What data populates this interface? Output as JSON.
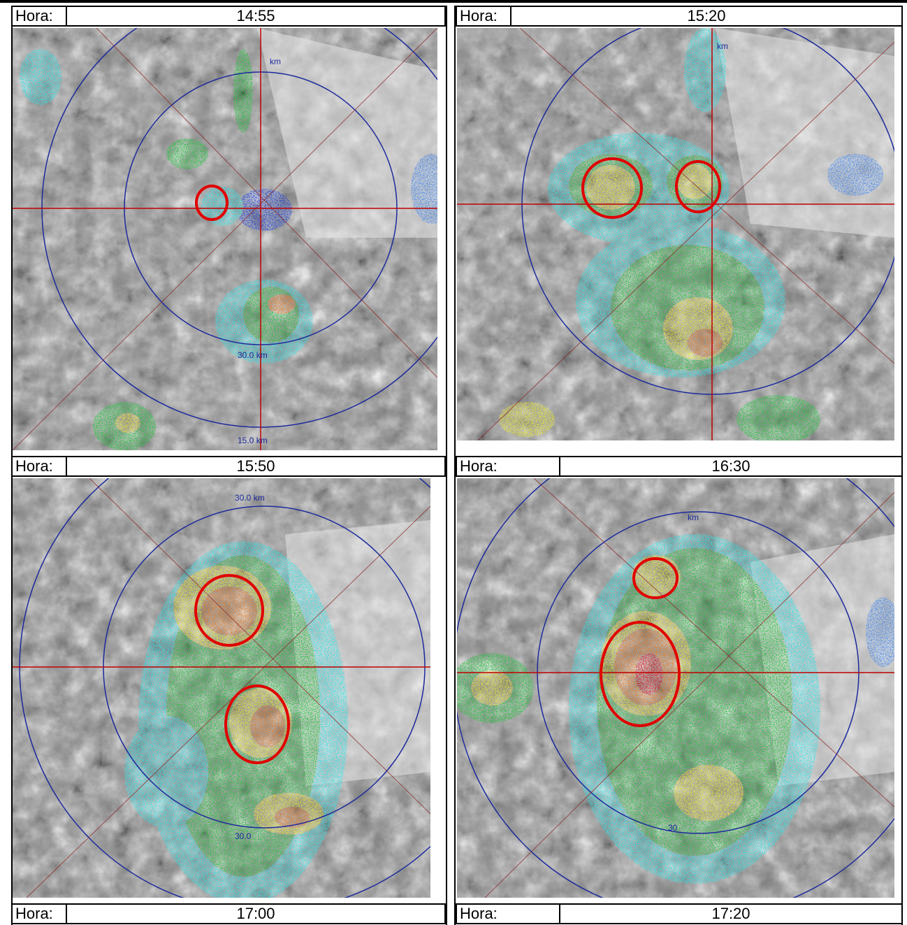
{
  "hour_label": "Hora:",
  "times": [
    "14:55",
    "15:20",
    "15:50",
    "16:30",
    "17:00",
    "17:20"
  ],
  "colors": {
    "relief_dark": "#4a4a4a",
    "relief_light": "#d8d8d8",
    "range_ring": "#1c2a9c",
    "crosshair": "#c00000",
    "echo_cyan": "#2fe2e8",
    "echo_green": "#1fc63a",
    "echo_yellow": "#e8e830",
    "echo_orange": "#f07a1a",
    "echo_red": "#e01010",
    "highlight": "#e00000"
  },
  "panel_text": {
    "p1": [
      "km",
      "30.0 km",
      "15.0 km"
    ],
    "p2": [
      "km"
    ],
    "p3": [
      "30.0 km",
      "30.0"
    ],
    "p4": [
      "km",
      "30"
    ]
  }
}
